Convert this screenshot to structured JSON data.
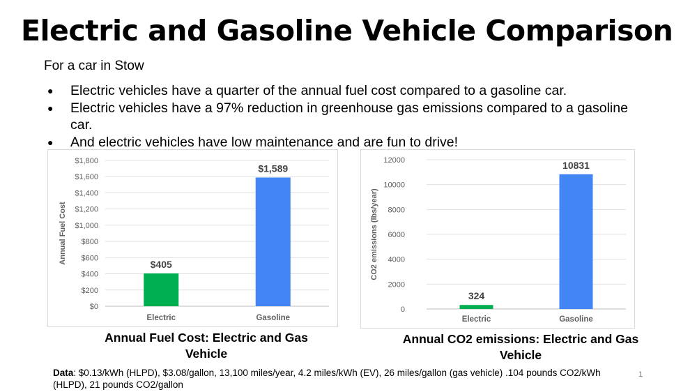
{
  "slide": {
    "title": "Electric and Gasoline Vehicle Comparison",
    "subtitle": "For a car in Stow",
    "bullets": [
      "Electric vehicles have a quarter of the annual fuel cost compared to a gasoline car.",
      "Electric vehicles have a 97% reduction in greenhouse gas emissions compared to a gasoline car.",
      "And electric vehicles have low maintenance and are fun to drive!"
    ],
    "footnote_label": "Data",
    "footnote_text": ": $0.13/kWh (HLPD), $3.08/gallon, 13,100 miles/year, 4.2 miles/kWh (EV), 26 miles/gallon (gas vehicle) .104 pounds CO2/kWh (HLPD), 21 pounds CO2/gallon",
    "page_number": "1"
  },
  "chart_data": [
    {
      "type": "bar",
      "title": "Annual Fuel Cost: Electric and Gas Vehicle",
      "ylabel": "Annual Fuel Cost",
      "categories": [
        "Electric",
        "Gasoline"
      ],
      "values": [
        405,
        1589
      ],
      "data_labels": [
        "$405",
        "$1,589"
      ],
      "colors": [
        "#00b050",
        "#4285f4"
      ],
      "ylim": [
        0,
        1800
      ],
      "yticks": [
        0,
        200,
        400,
        600,
        800,
        1000,
        1200,
        1400,
        1600,
        1800
      ],
      "ytick_labels": [
        "$0",
        "$200",
        "$400",
        "$600",
        "$800",
        "$1,000",
        "$1,200",
        "$1,400",
        "$1,600",
        "$1,800"
      ],
      "grid": true
    },
    {
      "type": "bar",
      "title": "Annual CO2 emissions: Electric and Gas Vehicle",
      "ylabel": "CO2 emissions (lbs/year)",
      "categories": [
        "Electric",
        "Gasoline"
      ],
      "values": [
        324,
        10831
      ],
      "data_labels": [
        "324",
        "10831"
      ],
      "colors": [
        "#00b050",
        "#4285f4"
      ],
      "ylim": [
        0,
        12000
      ],
      "yticks": [
        0,
        2000,
        4000,
        6000,
        8000,
        10000,
        12000
      ],
      "ytick_labels": [
        "0",
        "2000",
        "4000",
        "6000",
        "8000",
        "10000",
        "12000"
      ],
      "grid": true
    }
  ]
}
